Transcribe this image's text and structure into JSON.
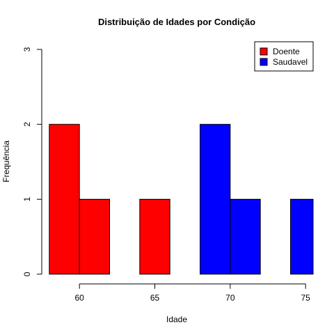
{
  "chart_data": {
    "type": "bar",
    "title": "Distribuição de Idades por Condição",
    "xlabel": "Idade",
    "ylabel": "Frequência",
    "xlim": [
      57.5,
      75.5
    ],
    "ylim": [
      0,
      3
    ],
    "x_ticks": [
      60,
      65,
      70,
      75
    ],
    "y_ticks": [
      0,
      1,
      2,
      3
    ],
    "legend_position": "top-right",
    "series": [
      {
        "name": "Doente",
        "color": "#ff0000",
        "bins": [
          {
            "x0": 58,
            "x1": 60,
            "count": 2
          },
          {
            "x0": 60,
            "x1": 62,
            "count": 1
          },
          {
            "x0": 62,
            "x1": 64,
            "count": 0
          },
          {
            "x0": 64,
            "x1": 66,
            "count": 1
          }
        ]
      },
      {
        "name": "Saudavel",
        "color": "#0000ff",
        "bins": [
          {
            "x0": 68,
            "x1": 70,
            "count": 2
          },
          {
            "x0": 70,
            "x1": 72,
            "count": 1
          },
          {
            "x0": 72,
            "x1": 74,
            "count": 0
          },
          {
            "x0": 74,
            "x1": 76,
            "count": 1
          }
        ]
      }
    ]
  }
}
